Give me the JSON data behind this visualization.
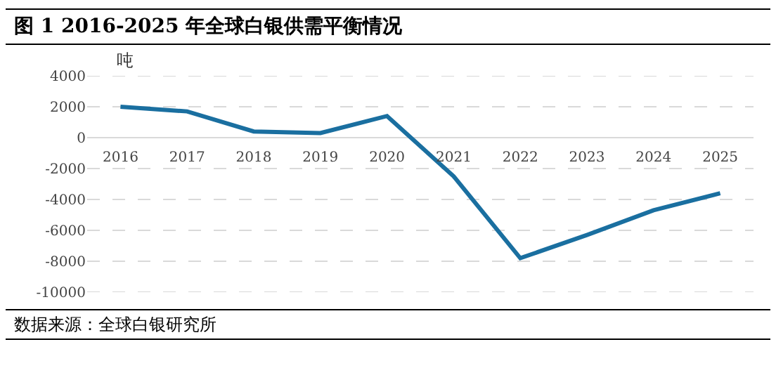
{
  "chart_data": {
    "type": "line",
    "title": "图 1 2016-2025 年全球白银供需平衡情况",
    "ylabel": "吨",
    "categories": [
      "2016",
      "2017",
      "2018",
      "2019",
      "2020",
      "2021",
      "2022",
      "2023",
      "2024",
      "2025"
    ],
    "series": [
      {
        "color": "#1a6fa0",
        "values": [
          2000,
          1700,
          400,
          300,
          1400,
          -2500,
          -7800,
          -6300,
          -4700,
          -3600
        ]
      }
    ],
    "ylim": [
      -10000,
      4000
    ],
    "yticks": [
      -10000,
      -8000,
      -6000,
      -4000,
      -2000,
      0,
      2000,
      4000
    ],
    "grid": "y",
    "marker": "none",
    "line_style": "solid",
    "annotations": [
      "数据来源：全球白银研究所"
    ]
  }
}
